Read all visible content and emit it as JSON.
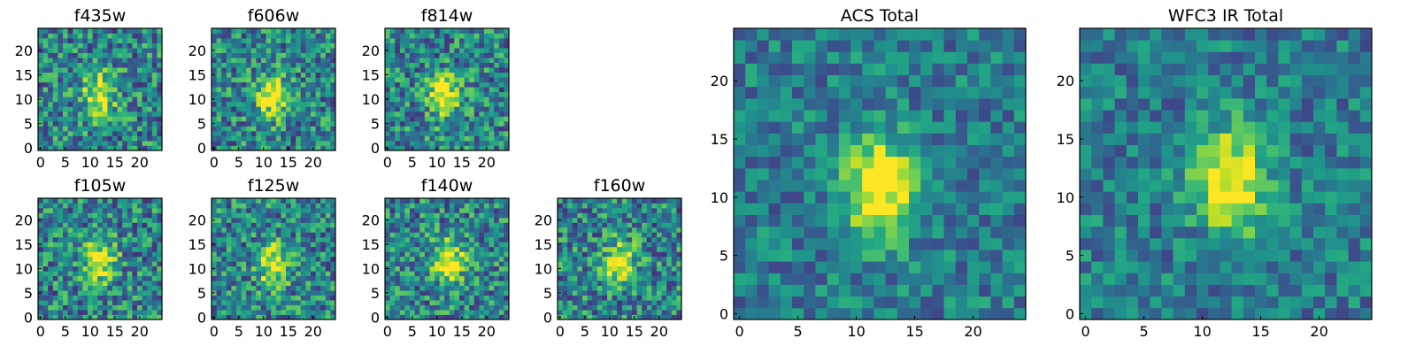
{
  "chart_data": [
    {
      "type": "heatmap",
      "title": "f435w",
      "xticks": [
        "0",
        "5",
        "10",
        "15",
        "20"
      ],
      "yticks": [
        "0",
        "5",
        "10",
        "15",
        "20"
      ],
      "xlim": [
        0,
        25
      ],
      "ylim": [
        0,
        25
      ],
      "grid": false,
      "colormap": "viridis",
      "source_blob": {
        "x": 12.5,
        "y": 11.5,
        "peak": 0.95
      }
    },
    {
      "type": "heatmap",
      "title": "f606w",
      "xticks": [
        "0",
        "5",
        "10",
        "15",
        "20"
      ],
      "yticks": [
        "0",
        "5",
        "10",
        "15",
        "20"
      ],
      "xlim": [
        0,
        25
      ],
      "ylim": [
        0,
        25
      ],
      "grid": false,
      "colormap": "viridis",
      "source_blob": {
        "x": 12,
        "y": 11,
        "peak": 0.95
      }
    },
    {
      "type": "heatmap",
      "title": "f814w",
      "xticks": [
        "0",
        "5",
        "10",
        "15",
        "20"
      ],
      "yticks": [
        "0",
        "5",
        "10",
        "15",
        "20"
      ],
      "xlim": [
        0,
        25
      ],
      "ylim": [
        0,
        25
      ],
      "grid": false,
      "colormap": "viridis",
      "source_blob": {
        "x": 12,
        "y": 11,
        "peak": 0.95
      }
    },
    {
      "type": "heatmap",
      "title": "f105w",
      "xticks": [
        "0",
        "5",
        "10",
        "15",
        "20"
      ],
      "yticks": [
        "0",
        "5",
        "10",
        "15",
        "20"
      ],
      "xlim": [
        0,
        25
      ],
      "ylim": [
        0,
        25
      ],
      "grid": false,
      "colormap": "viridis",
      "source_blob": {
        "x": 12.5,
        "y": 12,
        "peak": 0.95
      }
    },
    {
      "type": "heatmap",
      "title": "f125w",
      "xticks": [
        "0",
        "5",
        "10",
        "15",
        "20"
      ],
      "yticks": [
        "0",
        "5",
        "10",
        "15",
        "20"
      ],
      "xlim": [
        0,
        25
      ],
      "ylim": [
        0,
        25
      ],
      "grid": false,
      "colormap": "viridis",
      "source_blob": {
        "x": 12.5,
        "y": 11.5,
        "peak": 0.95
      }
    },
    {
      "type": "heatmap",
      "title": "f140w",
      "xticks": [
        "0",
        "5",
        "10",
        "15",
        "20"
      ],
      "yticks": [
        "0",
        "5",
        "10",
        "15",
        "20"
      ],
      "xlim": [
        0,
        25
      ],
      "ylim": [
        0,
        25
      ],
      "grid": false,
      "colormap": "viridis",
      "source_blob": {
        "x": 13,
        "y": 12,
        "peak": 0.95
      }
    },
    {
      "type": "heatmap",
      "title": "f160w",
      "xticks": [
        "0",
        "5",
        "10",
        "15",
        "20"
      ],
      "yticks": [
        "0",
        "5",
        "10",
        "15",
        "20"
      ],
      "xlim": [
        0,
        25
      ],
      "ylim": [
        0,
        25
      ],
      "grid": false,
      "colormap": "viridis",
      "source_blob": {
        "x": 12.5,
        "y": 11.5,
        "peak": 0.95
      }
    },
    {
      "type": "heatmap",
      "title": "ACS Total",
      "xticks": [
        "0",
        "5",
        "10",
        "15",
        "20"
      ],
      "yticks": [
        "0",
        "5",
        "10",
        "15",
        "20"
      ],
      "xlim": [
        0,
        25
      ],
      "ylim": [
        0,
        25
      ],
      "grid": false,
      "colormap": "viridis",
      "source_blob": {
        "x": 12.5,
        "y": 11.5,
        "peak": 1.0
      }
    },
    {
      "type": "heatmap",
      "title": "WFC3 IR Total",
      "xticks": [
        "0",
        "5",
        "10",
        "15",
        "20"
      ],
      "yticks": [
        "0",
        "5",
        "10",
        "15",
        "20"
      ],
      "xlim": [
        0,
        25
      ],
      "ylim": [
        0,
        25
      ],
      "grid": false,
      "colormap": "viridis",
      "source_blob": {
        "x": 13,
        "y": 12,
        "peak": 1.0
      }
    }
  ]
}
